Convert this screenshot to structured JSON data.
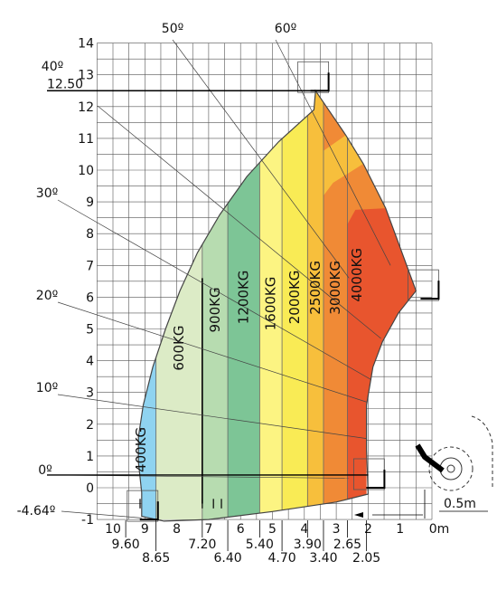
{
  "chart_data": {
    "type": "load-chart",
    "x_unit": "m",
    "x_ticks": [
      "10",
      "9",
      "8",
      "7",
      "6",
      "5",
      "4",
      "3",
      "2",
      "1",
      "0m"
    ],
    "y_ticks": [
      "14",
      "13",
      "12",
      "11",
      "10",
      "9",
      "8",
      "7",
      "6",
      "5",
      "4",
      "3",
      "2",
      "1",
      "0",
      "-1"
    ],
    "y_range": [
      -1,
      14
    ],
    "x_range": [
      0,
      10
    ],
    "grid": true,
    "reach_labels": [
      "9.60",
      "8.65",
      "7.20",
      "6.40",
      "5.40",
      "4.70",
      "3.90",
      "3.40",
      "2.65",
      "2.05"
    ],
    "reach_values": [
      9.6,
      8.65,
      7.2,
      6.4,
      5.4,
      4.7,
      3.9,
      3.4,
      2.65,
      2.05
    ],
    "max_height_label": "12.50",
    "max_height": 12.5,
    "angle_labels": [
      "60º",
      "50º",
      "40º",
      "30º",
      "20º",
      "10º",
      "0º",
      "-4.64º"
    ],
    "zones": [
      {
        "name": "400KG",
        "x_from": 9.6,
        "x_to": 8.65,
        "color": "#8fd3f0"
      },
      {
        "name": "600KG",
        "x_from": 8.65,
        "x_to": 7.2,
        "color": "#dcebc6"
      },
      {
        "name": "900KG",
        "x_from": 7.2,
        "x_to": 6.4,
        "color": "#b7dcb0"
      },
      {
        "name": "1200KG",
        "x_from": 6.4,
        "x_to": 5.4,
        "color": "#7dc596"
      },
      {
        "name": "1600KG",
        "x_from": 5.4,
        "x_to": 4.7,
        "color": "#fcf482"
      },
      {
        "name": "2000KG",
        "x_from": 4.7,
        "x_to": 3.9,
        "color": "#f9eb55"
      },
      {
        "name": "2500KG",
        "x_from": 3.9,
        "x_to": 3.4,
        "color": "#f7bf3c"
      },
      {
        "name": "3000KG",
        "x_from": 3.4,
        "x_to": 2.65,
        "color": "#f08a36"
      },
      {
        "name": "4000KG",
        "x_from": 2.65,
        "x_to": 2.05,
        "color": "#e8552e"
      }
    ],
    "annotation_dimension": "0.5m"
  }
}
